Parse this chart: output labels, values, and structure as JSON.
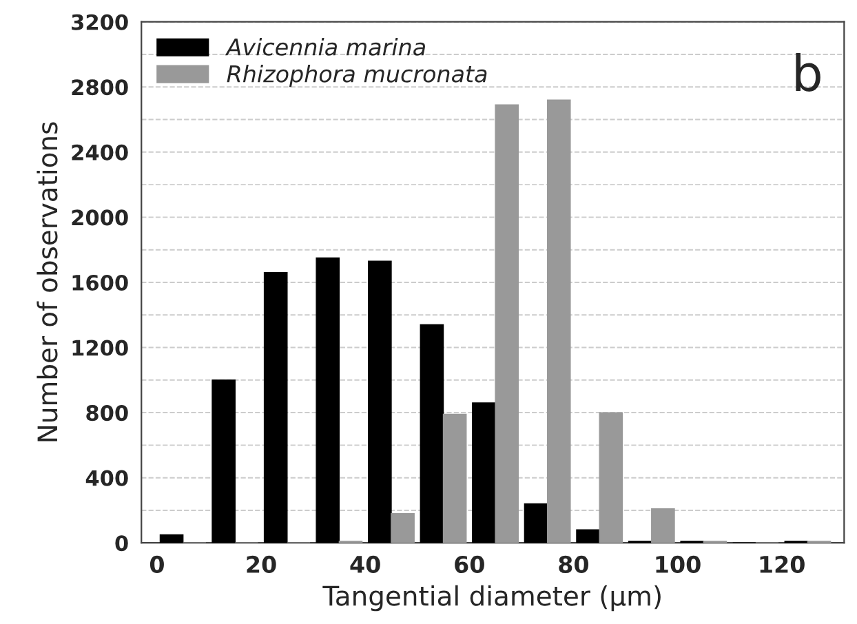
{
  "chart_data": {
    "type": "bar",
    "xlabel": "Tangential diameter (µm)",
    "ylabel": "Number of observations",
    "annotations": [
      "b"
    ],
    "x": [
      5,
      15,
      25,
      35,
      45,
      55,
      65,
      75,
      85,
      95,
      105,
      115,
      125
    ],
    "series": [
      {
        "name": "Avicennia marina",
        "color": "#000000",
        "values": [
          50,
          1000,
          1660,
          1750,
          1730,
          1340,
          860,
          240,
          80,
          10,
          10,
          0,
          10
        ]
      },
      {
        "name": "Rhizophora mucronata",
        "color": "#999999",
        "values": [
          0,
          0,
          0,
          10,
          180,
          790,
          2690,
          2720,
          800,
          210,
          10,
          0,
          10
        ]
      }
    ],
    "xlim": [
      -3,
      132
    ],
    "xticks": [
      0,
      20,
      40,
      60,
      80,
      100,
      120
    ],
    "ylim": [
      0,
      3200
    ],
    "yticks": [
      0,
      {
        "value": 200,
        "label": null
      },
      400,
      {
        "value": 600,
        "label": null
      },
      800,
      {
        "value": 1000,
        "label": null
      },
      1200,
      {
        "value": 1400,
        "label": null
      },
      1600,
      {
        "value": 1800,
        "label": null
      },
      2000,
      {
        "value": 2200,
        "label": null
      },
      2400,
      {
        "value": 2600,
        "label": null
      },
      2800,
      {
        "value": 3000,
        "label": null
      },
      3200
    ],
    "grid": "y",
    "legend": "top left"
  }
}
